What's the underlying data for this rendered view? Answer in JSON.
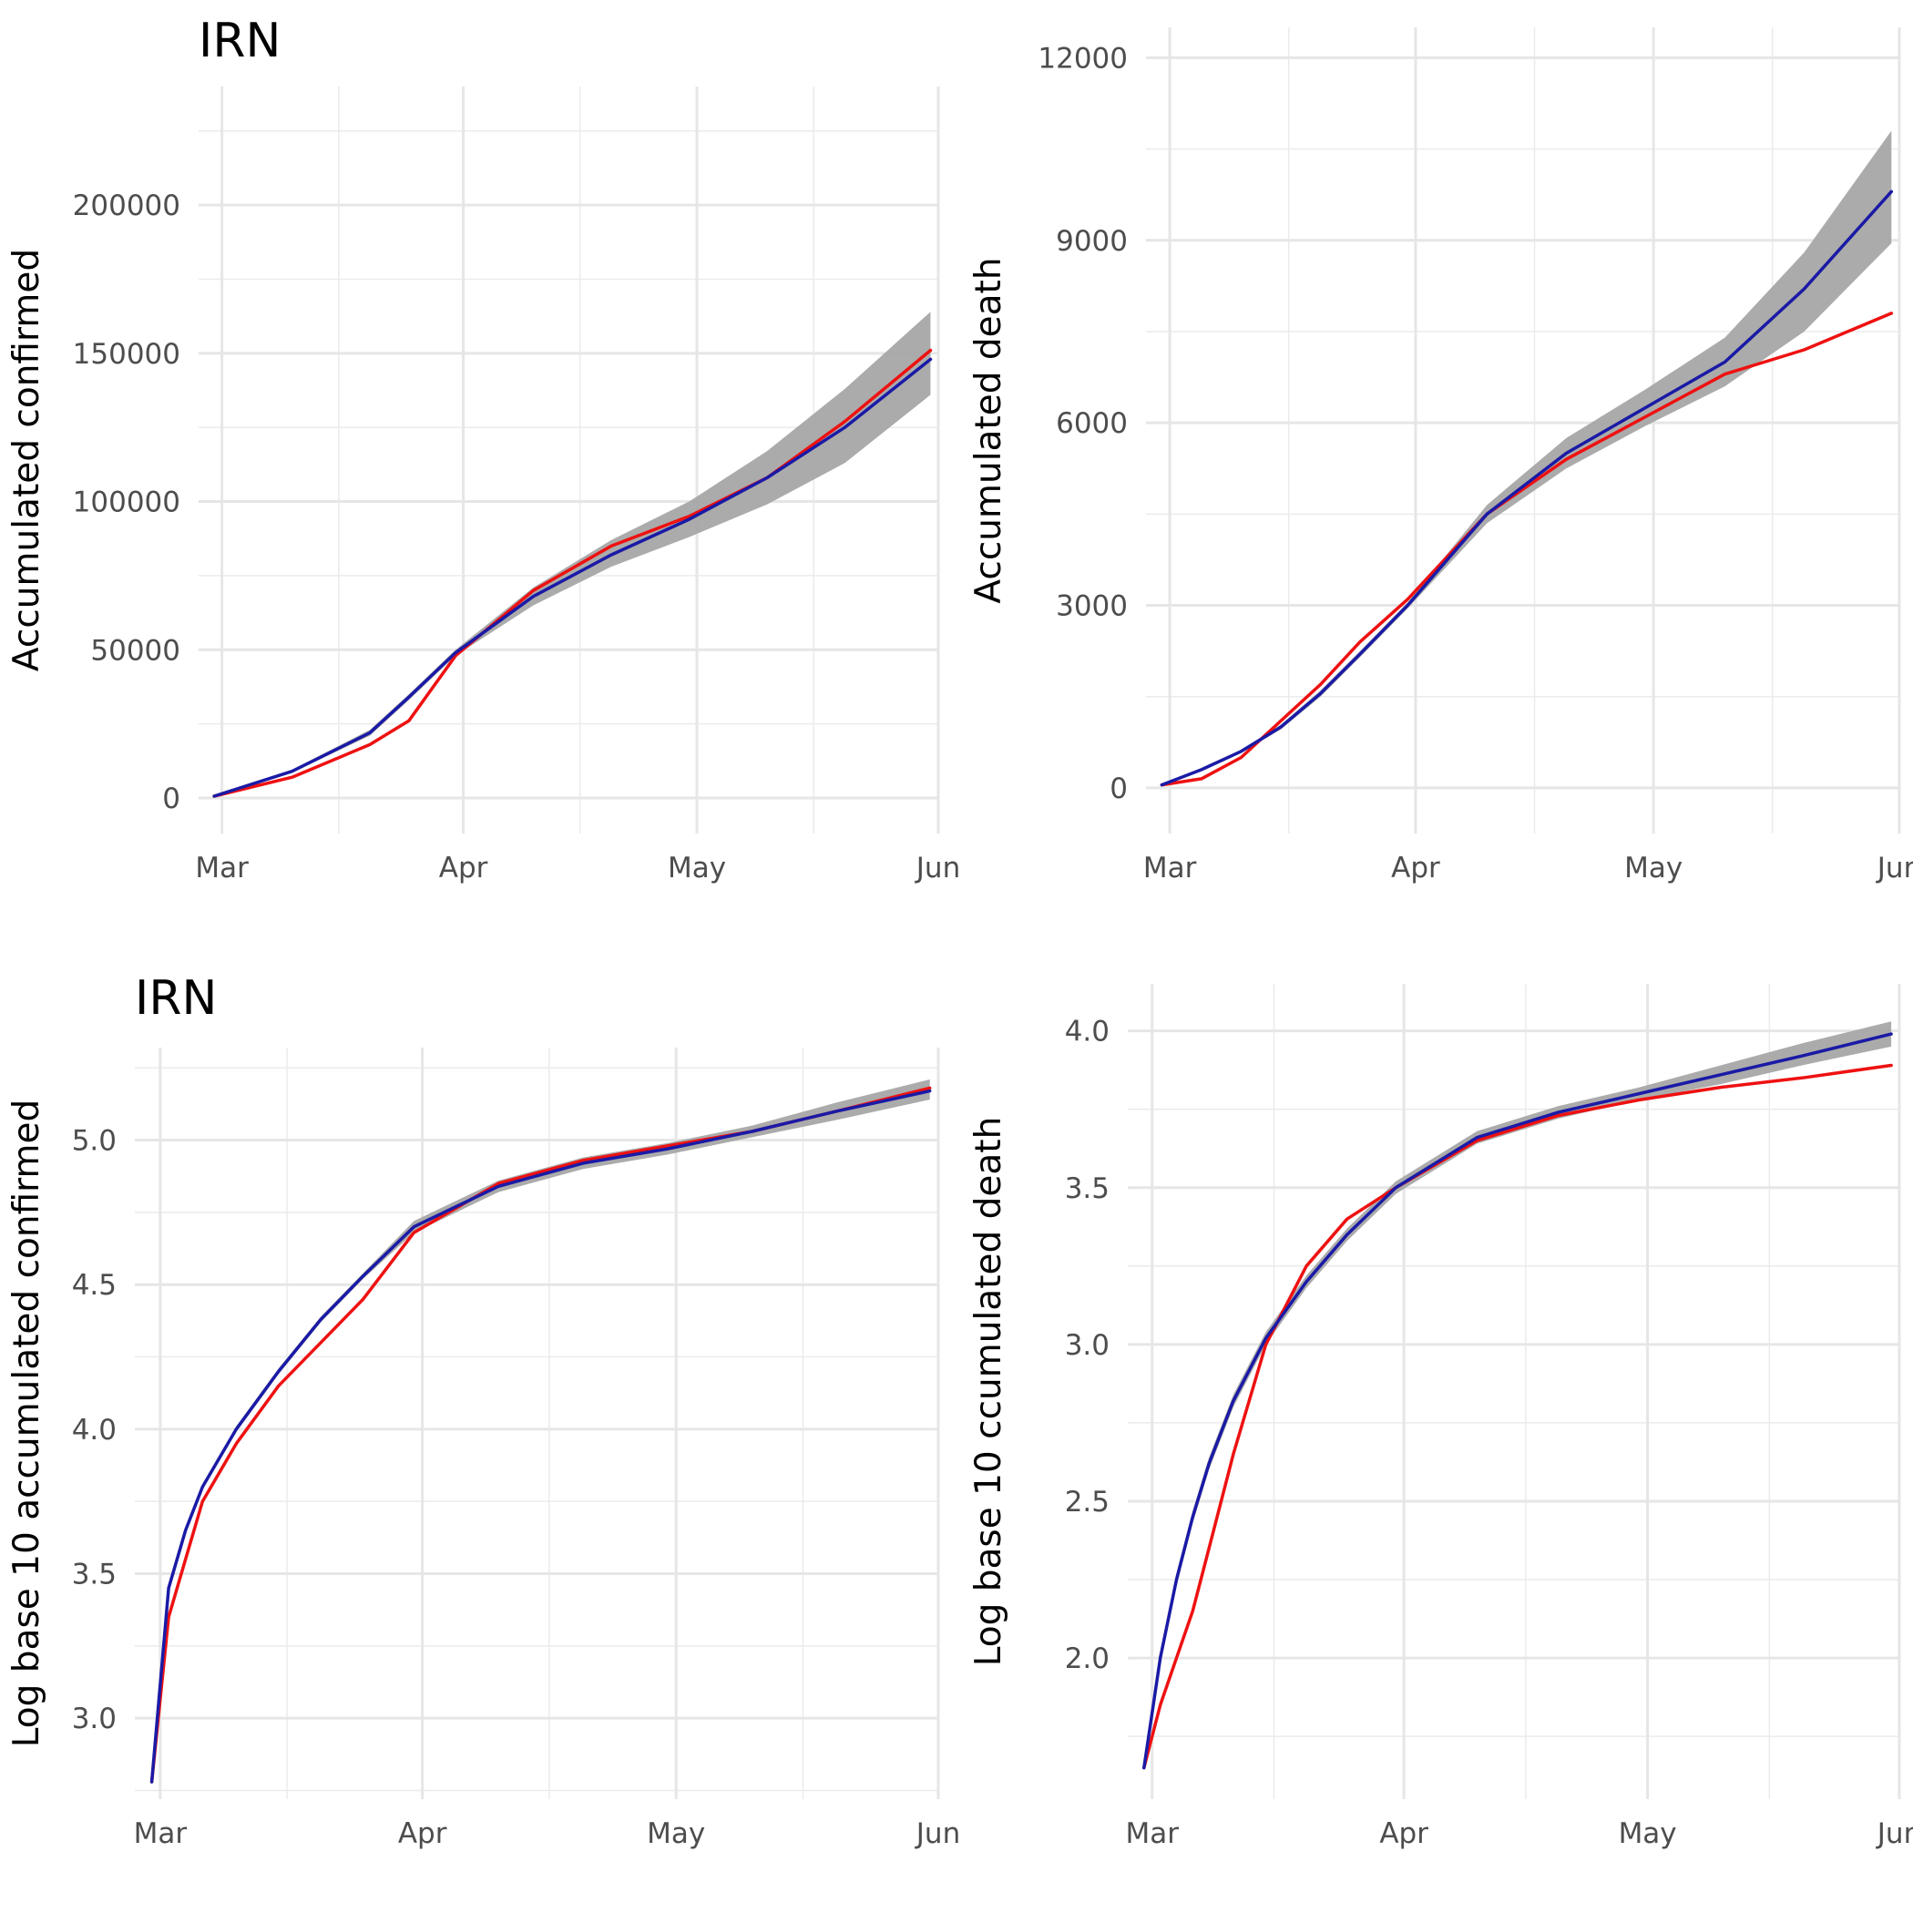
{
  "chart_data": [
    {
      "type": "line",
      "title": "IRN",
      "xlabel": "",
      "ylabel": "Accumulated confirmed",
      "x_tick_labels": [
        "Mar",
        "Apr",
        "May",
        "Jun"
      ],
      "y_ticks": [
        0,
        50000,
        100000,
        150000,
        200000
      ],
      "y_tick_labels": [
        "0",
        "50000",
        "100000",
        "150000",
        "200000"
      ],
      "ylim": [
        -12000,
        240000
      ],
      "grid": true,
      "colors": {
        "observed": "#ee1111",
        "fitted": "#1a1aa6",
        "band": "#a6a6a6"
      },
      "x": [
        "2020-02-29",
        "2020-03-10",
        "2020-03-20",
        "2020-03-25",
        "2020-03-31",
        "2020-04-10",
        "2020-04-20",
        "2020-04-30",
        "2020-05-10",
        "2020-05-20",
        "2020-05-31"
      ],
      "series": [
        {
          "values": [
            600,
            7000,
            18000,
            26000,
            48000,
            70000,
            85000,
            95000,
            108000,
            127000,
            151000
          ]
        },
        {
          "values": [
            600,
            9000,
            22000,
            34000,
            49000,
            68000,
            82000,
            94000,
            108000,
            125000,
            148000
          ]
        }
      ],
      "band": {
        "lower": [
          500,
          8500,
          21000,
          33000,
          48000,
          65000,
          78000,
          88000,
          99000,
          113000,
          136000
        ],
        "upper": [
          700,
          9500,
          23000,
          35000,
          50000,
          71000,
          87000,
          100000,
          117000,
          138000,
          164000
        ]
      }
    },
    {
      "type": "line",
      "title": "",
      "xlabel": "",
      "ylabel": "Accumulated death",
      "x_tick_labels": [
        "Mar",
        "Apr",
        "May",
        "Jun"
      ],
      "y_ticks": [
        0,
        3000,
        6000,
        9000,
        12000
      ],
      "y_tick_labels": [
        "0",
        "3000",
        "6000",
        "9000",
        "12000"
      ],
      "ylim": [
        -750,
        12500
      ],
      "grid": true,
      "colors": {
        "observed": "#ee1111",
        "fitted": "#1a1aa6",
        "band": "#a6a6a6"
      },
      "x": [
        "2020-02-29",
        "2020-03-05",
        "2020-03-10",
        "2020-03-15",
        "2020-03-20",
        "2020-03-25",
        "2020-03-31",
        "2020-04-10",
        "2020-04-20",
        "2020-04-30",
        "2020-05-10",
        "2020-05-20",
        "2020-05-31"
      ],
      "series": [
        {
          "values": [
            50,
            150,
            500,
            1100,
            1700,
            2400,
            3100,
            4500,
            5400,
            6100,
            6800,
            7200,
            7800
          ]
        },
        {
          "values": [
            50,
            300,
            600,
            1000,
            1550,
            2200,
            3000,
            4500,
            5500,
            6250,
            7000,
            8200,
            9800
          ]
        }
      ],
      "band": {
        "lower": [
          40,
          280,
          580,
          960,
          1500,
          2150,
          2950,
          4350,
          5250,
          5950,
          6600,
          7500,
          8950
        ],
        "upper": [
          60,
          320,
          620,
          1040,
          1600,
          2250,
          3050,
          4650,
          5750,
          6550,
          7400,
          8800,
          10800
        ]
      }
    },
    {
      "type": "line",
      "title": "IRN",
      "xlabel": "",
      "ylabel": "Log base 10 accumulated confirmed",
      "x_tick_labels": [
        "Mar",
        "Apr",
        "May",
        "Jun"
      ],
      "y_ticks": [
        3.0,
        3.5,
        4.0,
        4.5,
        5.0
      ],
      "y_tick_labels": [
        "3.0",
        "3.5",
        "4.0",
        "4.5",
        "5.0"
      ],
      "ylim": [
        2.72,
        5.32
      ],
      "grid": true,
      "colors": {
        "observed": "#ee1111",
        "fitted": "#1a1aa6",
        "band": "#a6a6a6"
      },
      "x": [
        "2020-02-29",
        "2020-03-02",
        "2020-03-04",
        "2020-03-06",
        "2020-03-10",
        "2020-03-15",
        "2020-03-20",
        "2020-03-25",
        "2020-03-31",
        "2020-04-10",
        "2020-04-20",
        "2020-04-30",
        "2020-05-10",
        "2020-05-20",
        "2020-05-31"
      ],
      "series": [
        {
          "values": [
            2.78,
            3.35,
            3.55,
            3.75,
            3.95,
            4.15,
            4.3,
            4.45,
            4.68,
            4.85,
            4.93,
            4.98,
            5.03,
            5.1,
            5.18
          ]
        },
        {
          "values": [
            2.78,
            3.45,
            3.65,
            3.8,
            4.0,
            4.2,
            4.38,
            4.53,
            4.7,
            4.84,
            4.92,
            4.97,
            5.03,
            5.1,
            5.17
          ]
        }
      ],
      "band": {
        "lower": [
          2.77,
          3.44,
          3.64,
          3.79,
          3.99,
          4.19,
          4.37,
          4.52,
          4.68,
          4.82,
          4.9,
          4.95,
          5.01,
          5.07,
          5.14
        ],
        "upper": [
          2.79,
          3.46,
          3.66,
          3.81,
          4.01,
          4.21,
          4.39,
          4.54,
          4.72,
          4.86,
          4.94,
          4.99,
          5.05,
          5.13,
          5.21
        ]
      }
    },
    {
      "type": "line",
      "title": "",
      "xlabel": "",
      "ylabel": "Log base 10 ccumulated death",
      "x_tick_labels": [
        "Mar",
        "Apr",
        "May",
        "Jun"
      ],
      "y_ticks": [
        2.0,
        2.5,
        3.0,
        3.5,
        4.0
      ],
      "y_tick_labels": [
        "2.0",
        "2.5",
        "3.0",
        "3.5",
        "4.0"
      ],
      "ylim": [
        1.55,
        4.15
      ],
      "grid": true,
      "colors": {
        "observed": "#ee1111",
        "fitted": "#1a1aa6",
        "band": "#a6a6a6"
      },
      "x": [
        "2020-02-29",
        "2020-03-02",
        "2020-03-04",
        "2020-03-06",
        "2020-03-08",
        "2020-03-11",
        "2020-03-15",
        "2020-03-20",
        "2020-03-25",
        "2020-03-31",
        "2020-04-10",
        "2020-04-20",
        "2020-04-30",
        "2020-05-10",
        "2020-05-20",
        "2020-05-31"
      ],
      "series": [
        {
          "values": [
            1.65,
            1.85,
            2.0,
            2.15,
            2.35,
            2.65,
            3.0,
            3.25,
            3.4,
            3.5,
            3.65,
            3.73,
            3.78,
            3.82,
            3.85,
            3.89
          ]
        },
        {
          "values": [
            1.65,
            2.0,
            2.25,
            2.45,
            2.62,
            2.82,
            3.02,
            3.2,
            3.35,
            3.5,
            3.66,
            3.74,
            3.8,
            3.86,
            3.92,
            3.99
          ]
        }
      ],
      "band": {
        "lower": [
          1.64,
          1.98,
          2.23,
          2.43,
          2.6,
          2.8,
          3.0,
          3.18,
          3.33,
          3.48,
          3.64,
          3.72,
          3.78,
          3.83,
          3.89,
          3.95
        ],
        "upper": [
          1.66,
          2.02,
          2.27,
          2.47,
          2.64,
          2.84,
          3.04,
          3.22,
          3.37,
          3.52,
          3.68,
          3.76,
          3.82,
          3.89,
          3.96,
          4.03
        ]
      }
    }
  ]
}
